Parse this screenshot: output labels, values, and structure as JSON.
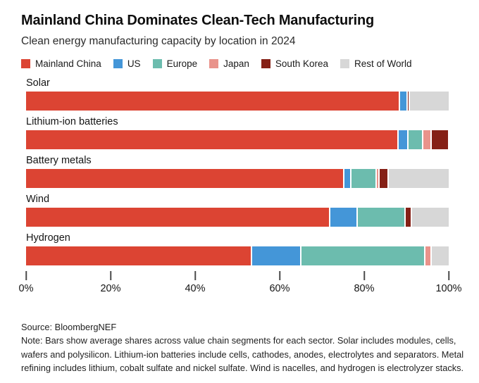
{
  "header": {
    "title": "Mainland China Dominates Clean-Tech Manufacturing",
    "subtitle": "Clean energy manufacturing capacity by location in 2024"
  },
  "chart_data": {
    "type": "bar",
    "orientation": "horizontal",
    "stacked": true,
    "unit": "percent",
    "title": "Mainland China Dominates Clean-Tech Manufacturing",
    "subtitle": "Clean energy manufacturing capacity by location in 2024",
    "legend_position": "top",
    "grid": false,
    "xlim": [
      0,
      100
    ],
    "x_ticks": [
      "0%",
      "20%",
      "40%",
      "60%",
      "80%",
      "100%"
    ],
    "categories": [
      "Solar",
      "Lithium-ion batteries",
      "Battery metals",
      "Wind",
      "Hydrogen"
    ],
    "series": [
      {
        "name": "Mainland China",
        "color": "#dc4433",
        "values": [
          88.2,
          87.9,
          75.0,
          71.6,
          53.1
        ]
      },
      {
        "name": "US",
        "color": "#4496d8",
        "values": [
          1.8,
          2.3,
          1.7,
          6.6,
          11.8
        ]
      },
      {
        "name": "Europe",
        "color": "#6cbcae",
        "values": [
          0,
          3.5,
          6.0,
          11.3,
          29.3
        ]
      },
      {
        "name": "Japan",
        "color": "#e9938b",
        "values": [
          0,
          1.9,
          0.6,
          0,
          1.5
        ]
      },
      {
        "name": "South Korea",
        "color": "#852016",
        "values": [
          0.5,
          4.3,
          2.2,
          1.5,
          0
        ]
      },
      {
        "name": "Rest of World",
        "color": "#d7d7d7",
        "values": [
          9.5,
          0.1,
          14.5,
          9.0,
          4.3
        ]
      }
    ]
  },
  "footer": {
    "source": "Source: BloombergNEF",
    "note": "Note: Bars show average shares across value chain segments for each sector. Solar includes modules, cells, wafers and polysilicon. Lithium-ion batteries include cells, cathodes, anodes, electrolytes and separators. Metal refining includes lithium, cobalt sulfate and nickel sulfate. Wind is nacelles, and hydrogen is electrolyzer stacks."
  }
}
